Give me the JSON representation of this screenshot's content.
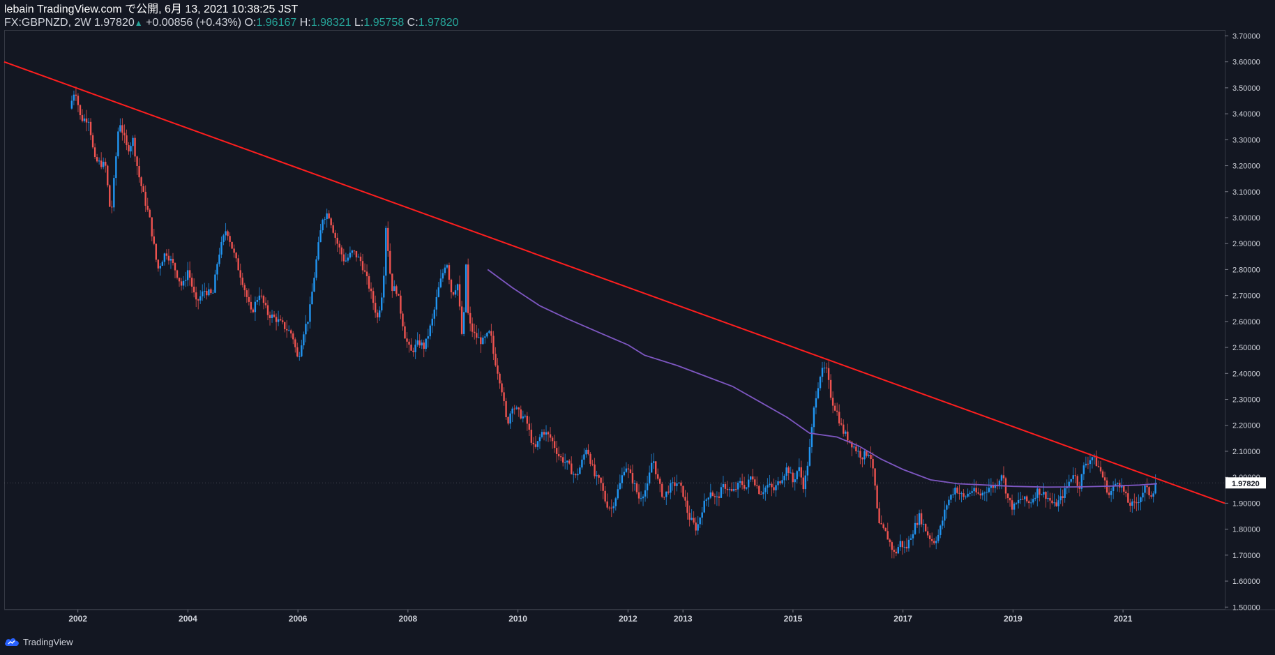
{
  "header": {
    "published": "lebain TradingView.com で公開, 6月 13, 2021 10:38:25 JST",
    "symbol": "FX:GBPNZD, 2W",
    "last": "1.97820",
    "change": "+0.00856 (+0.43%)",
    "open_label": "O:",
    "open": "1.96167",
    "high_label": "H:",
    "high": "1.98321",
    "low_label": "L:",
    "low": "1.95758",
    "close_label": "C:",
    "close": "1.97820"
  },
  "footer": {
    "brand": "TradingView"
  },
  "colors": {
    "background": "#131722",
    "up_candle": "#2196f3",
    "down_candle": "#ef5350",
    "trendline": "#ff1e1e",
    "moving_average": "#7e57c2",
    "axis_text": "#d1d4dc",
    "price_tag": "#ffffff"
  },
  "chart_data": {
    "type": "candlestick",
    "symbol": "FX:GBPNZD",
    "interval": "2W",
    "x_tick_labels": [
      "2002",
      "2004",
      "2006",
      "2008",
      "2010",
      "2012",
      "2013",
      "2015",
      "2017",
      "2019",
      "2021"
    ],
    "x_tick_positions": [
      2002.0,
      2004.0,
      2006.0,
      2008.0,
      2010.0,
      2012.0,
      2013.0,
      2015.0,
      2017.0,
      2019.0,
      2021.0
    ],
    "xlim": [
      2000.66,
      2022.85
    ],
    "y_ticks": [
      "1.50000",
      "1.60000",
      "1.70000",
      "1.80000",
      "1.90000",
      "2.00000",
      "2.10000",
      "2.20000",
      "2.30000",
      "2.40000",
      "2.50000",
      "2.60000",
      "2.70000",
      "2.80000",
      "2.90000",
      "3.00000",
      "3.10000",
      "3.20000",
      "3.30000",
      "3.40000",
      "3.50000",
      "3.60000",
      "3.70000"
    ],
    "ylim": [
      1.49,
      3.72
    ],
    "last_price": 1.9782,
    "last_price_label": "1.97820",
    "price_path": [
      [
        2001.85,
        3.42
      ],
      [
        2001.95,
        3.5
      ],
      [
        2002.05,
        3.38
      ],
      [
        2002.2,
        3.38
      ],
      [
        2002.3,
        3.22
      ],
      [
        2002.5,
        3.2
      ],
      [
        2002.6,
        3.0
      ],
      [
        2002.75,
        3.38
      ],
      [
        2002.9,
        3.26
      ],
      [
        2003.0,
        3.3
      ],
      [
        2003.1,
        3.17
      ],
      [
        2003.2,
        3.08
      ],
      [
        2003.3,
        3.0
      ],
      [
        2003.45,
        2.8
      ],
      [
        2003.6,
        2.87
      ],
      [
        2003.75,
        2.81
      ],
      [
        2003.9,
        2.73
      ],
      [
        2004.0,
        2.8
      ],
      [
        2004.15,
        2.67
      ],
      [
        2004.3,
        2.72
      ],
      [
        2004.45,
        2.7
      ],
      [
        2004.55,
        2.85
      ],
      [
        2004.7,
        2.96
      ],
      [
        2004.85,
        2.85
      ],
      [
        2005.0,
        2.75
      ],
      [
        2005.15,
        2.63
      ],
      [
        2005.3,
        2.71
      ],
      [
        2005.45,
        2.63
      ],
      [
        2005.6,
        2.61
      ],
      [
        2005.75,
        2.58
      ],
      [
        2005.9,
        2.55
      ],
      [
        2006.0,
        2.45
      ],
      [
        2006.1,
        2.56
      ],
      [
        2006.2,
        2.62
      ],
      [
        2006.35,
        2.86
      ],
      [
        2006.45,
        3.0
      ],
      [
        2006.55,
        3.02
      ],
      [
        2006.7,
        2.91
      ],
      [
        2006.85,
        2.83
      ],
      [
        2007.0,
        2.87
      ],
      [
        2007.15,
        2.83
      ],
      [
        2007.3,
        2.73
      ],
      [
        2007.45,
        2.61
      ],
      [
        2007.55,
        2.74
      ],
      [
        2007.6,
        2.97
      ],
      [
        2007.7,
        2.73
      ],
      [
        2007.8,
        2.72
      ],
      [
        2007.95,
        2.54
      ],
      [
        2008.05,
        2.48
      ],
      [
        2008.2,
        2.52
      ],
      [
        2008.3,
        2.5
      ],
      [
        2008.45,
        2.61
      ],
      [
        2008.55,
        2.72
      ],
      [
        2008.7,
        2.84
      ],
      [
        2008.8,
        2.7
      ],
      [
        2008.9,
        2.75
      ],
      [
        2009.0,
        2.5
      ],
      [
        2009.05,
        2.85
      ],
      [
        2009.1,
        2.6
      ],
      [
        2009.2,
        2.55
      ],
      [
        2009.35,
        2.52
      ],
      [
        2009.5,
        2.56
      ],
      [
        2009.55,
        2.48
      ],
      [
        2009.7,
        2.35
      ],
      [
        2009.8,
        2.2
      ],
      [
        2009.9,
        2.28
      ],
      [
        2010.0,
        2.25
      ],
      [
        2010.15,
        2.22
      ],
      [
        2010.3,
        2.1
      ],
      [
        2010.45,
        2.18
      ],
      [
        2010.6,
        2.15
      ],
      [
        2010.75,
        2.08
      ],
      [
        2010.9,
        2.05
      ],
      [
        2011.05,
        2.0
      ],
      [
        2011.15,
        2.05
      ],
      [
        2011.25,
        2.12
      ],
      [
        2011.4,
        2.0
      ],
      [
        2011.5,
        1.98
      ],
      [
        2011.6,
        1.9
      ],
      [
        2011.7,
        1.88
      ],
      [
        2011.85,
        1.97
      ],
      [
        2011.95,
        2.05
      ],
      [
        2012.1,
        1.98
      ],
      [
        2012.2,
        1.92
      ],
      [
        2012.35,
        1.96
      ],
      [
        2012.45,
        2.08
      ],
      [
        2012.55,
        1.98
      ],
      [
        2012.65,
        1.92
      ],
      [
        2012.75,
        1.96
      ],
      [
        2012.9,
        1.98
      ],
      [
        2013.0,
        1.94
      ],
      [
        2013.1,
        1.85
      ],
      [
        2013.25,
        1.8
      ],
      [
        2013.35,
        1.88
      ],
      [
        2013.5,
        1.95
      ],
      [
        2013.6,
        1.91
      ],
      [
        2013.75,
        1.97
      ],
      [
        2013.9,
        1.94
      ],
      [
        2014.05,
        1.98
      ],
      [
        2014.15,
        1.96
      ],
      [
        2014.25,
        2.01
      ],
      [
        2014.4,
        1.94
      ],
      [
        2014.55,
        1.97
      ],
      [
        2014.65,
        1.95
      ],
      [
        2014.8,
        2.0
      ],
      [
        2014.9,
        2.04
      ],
      [
        2015.0,
        1.98
      ],
      [
        2015.1,
        2.04
      ],
      [
        2015.2,
        1.96
      ],
      [
        2015.3,
        2.1
      ],
      [
        2015.4,
        2.3
      ],
      [
        2015.5,
        2.4
      ],
      [
        2015.6,
        2.42
      ],
      [
        2015.7,
        2.3
      ],
      [
        2015.8,
        2.25
      ],
      [
        2015.9,
        2.18
      ],
      [
        2016.0,
        2.15
      ],
      [
        2016.1,
        2.12
      ],
      [
        2016.25,
        2.08
      ],
      [
        2016.4,
        2.1
      ],
      [
        2016.5,
        1.95
      ],
      [
        2016.55,
        1.82
      ],
      [
        2016.7,
        1.78
      ],
      [
        2016.85,
        1.7
      ],
      [
        2016.95,
        1.75
      ],
      [
        2017.05,
        1.72
      ],
      [
        2017.15,
        1.78
      ],
      [
        2017.3,
        1.85
      ],
      [
        2017.45,
        1.78
      ],
      [
        2017.55,
        1.75
      ],
      [
        2017.65,
        1.78
      ],
      [
        2017.8,
        1.9
      ],
      [
        2017.95,
        1.96
      ],
      [
        2018.1,
        1.92
      ],
      [
        2018.25,
        1.95
      ],
      [
        2018.4,
        1.93
      ],
      [
        2018.55,
        1.96
      ],
      [
        2018.7,
        1.97
      ],
      [
        2018.8,
        2.02
      ],
      [
        2018.9,
        1.92
      ],
      [
        2019.0,
        1.88
      ],
      [
        2019.15,
        1.92
      ],
      [
        2019.3,
        1.9
      ],
      [
        2019.45,
        1.95
      ],
      [
        2019.6,
        1.93
      ],
      [
        2019.75,
        1.89
      ],
      [
        2019.85,
        1.91
      ],
      [
        2019.95,
        1.95
      ],
      [
        2020.1,
        2.02
      ],
      [
        2020.2,
        1.96
      ],
      [
        2020.3,
        2.05
      ],
      [
        2020.45,
        2.08
      ],
      [
        2020.6,
        2.02
      ],
      [
        2020.75,
        1.93
      ],
      [
        2020.9,
        1.99
      ],
      [
        2021.0,
        1.95
      ],
      [
        2021.1,
        1.9
      ],
      [
        2021.2,
        1.89
      ],
      [
        2021.3,
        1.92
      ],
      [
        2021.4,
        1.96
      ],
      [
        2021.5,
        1.93
      ],
      [
        2021.6,
        1.97
      ],
      [
        2021.62,
        1.9782
      ]
    ],
    "moving_average": [
      [
        2009.45,
        2.8
      ],
      [
        2009.9,
        2.73
      ],
      [
        2010.4,
        2.66
      ],
      [
        2010.9,
        2.61
      ],
      [
        2011.5,
        2.555
      ],
      [
        2012.0,
        2.51
      ],
      [
        2012.3,
        2.47
      ],
      [
        2012.9,
        2.43
      ],
      [
        2013.4,
        2.39
      ],
      [
        2013.9,
        2.35
      ],
      [
        2014.4,
        2.29
      ],
      [
        2014.9,
        2.23
      ],
      [
        2015.3,
        2.17
      ],
      [
        2015.8,
        2.155
      ],
      [
        2016.2,
        2.12
      ],
      [
        2016.6,
        2.07
      ],
      [
        2017.0,
        2.03
      ],
      [
        2017.5,
        1.99
      ],
      [
        2018.0,
        1.975
      ],
      [
        2018.5,
        1.97
      ],
      [
        2019.0,
        1.965
      ],
      [
        2019.6,
        1.962
      ],
      [
        2020.2,
        1.963
      ],
      [
        2020.8,
        1.966
      ],
      [
        2021.3,
        1.97
      ],
      [
        2021.62,
        1.975
      ]
    ],
    "trendline": {
      "points": [
        [
          2000.66,
          3.6
        ],
        [
          2022.85,
          1.9
        ]
      ]
    }
  }
}
